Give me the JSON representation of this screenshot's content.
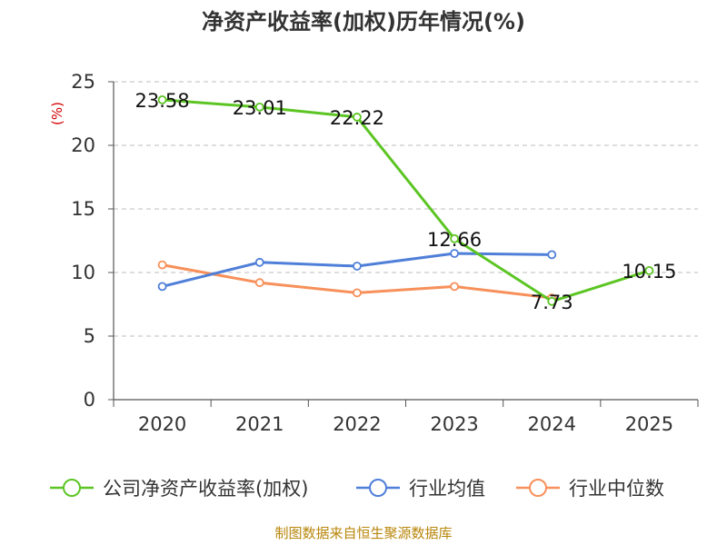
{
  "chart_data": {
    "type": "line",
    "title": "净资产收益率(加权)历年情况(%)",
    "ylabel": "(%)",
    "xlabel": "",
    "categories": [
      "2020",
      "2021",
      "2022",
      "2023",
      "2024",
      "2025"
    ],
    "ylim": [
      0,
      25
    ],
    "yticks": [
      0,
      5,
      10,
      15,
      20,
      25
    ],
    "grid": true,
    "legend_position": "bottom",
    "series": [
      {
        "name": "公司净资产收益率(加权)",
        "values": [
          23.58,
          23.01,
          22.22,
          12.66,
          7.73,
          10.15
        ],
        "labels": [
          "23.58",
          "23.01",
          "22.22",
          "12.66",
          "7.73",
          "10.15"
        ],
        "color": "#5cc523"
      },
      {
        "name": "行业均值",
        "values": [
          8.9,
          10.8,
          10.5,
          11.5,
          11.4,
          null
        ],
        "color": "#4f7fd8"
      },
      {
        "name": "行业中位数",
        "values": [
          10.6,
          9.2,
          8.4,
          8.9,
          8.0,
          null
        ],
        "color": "#f7905a"
      }
    ]
  },
  "footer": "制图数据来自恒生聚源数据库"
}
